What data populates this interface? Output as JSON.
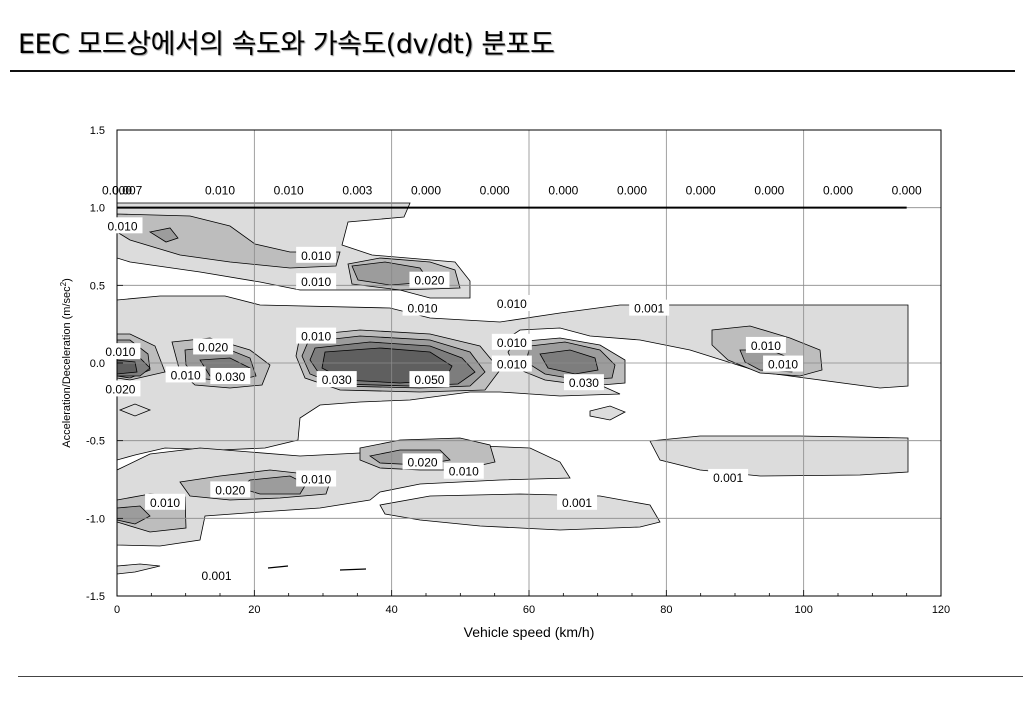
{
  "page": {
    "title": "EEC 모드상에서의 속도와  가속도(dv/dt) 분포도"
  },
  "chart_data": {
    "type": "contour",
    "xlabel": "Vehicle speed (km/h)",
    "ylabel": "Acceleration/Deceleration (m/sec",
    "ylabel_superscript": "2",
    "ylabel_close": ")",
    "xlim": [
      0,
      120
    ],
    "ylim": [
      -1.5,
      1.5
    ],
    "x_ticks": [
      0,
      20,
      40,
      60,
      80,
      100,
      120
    ],
    "y_ticks": [
      1.5,
      1.0,
      0.5,
      0.0,
      -0.5,
      -1.0,
      -1.5
    ],
    "x_tick_labels": [
      "0",
      "20",
      "40",
      "60",
      "80",
      "100",
      "120"
    ],
    "y_tick_labels": [
      "1.5",
      "1.0",
      "0.5",
      "0.0",
      "-0.5",
      "-1.0",
      "-1.5"
    ],
    "grid": true,
    "contour_levels": [
      0.001,
      0.01,
      0.02,
      0.03,
      0.05
    ],
    "level_colors": [
      "#dcdcdc",
      "#bdbdbd",
      "#9c9c9c",
      "#7d7d7d",
      "#5f5f5f"
    ],
    "top_row": {
      "y": 1.0,
      "values": [
        {
          "x": 0,
          "text": "0.000"
        },
        {
          "x": 1.5,
          "text": "0.007"
        },
        {
          "x": 15,
          "text": "0.010"
        },
        {
          "x": 25,
          "text": "0.010"
        },
        {
          "x": 35,
          "text": "0.003"
        },
        {
          "x": 45,
          "text": "0.000"
        },
        {
          "x": 55,
          "text": "0.000"
        },
        {
          "x": 65,
          "text": "0.000"
        },
        {
          "x": 75,
          "text": "0.000"
        },
        {
          "x": 85,
          "text": "0.000"
        },
        {
          "x": 95,
          "text": "0.000"
        },
        {
          "x": 105,
          "text": "0.000"
        },
        {
          "x": 115,
          "text": "0.000"
        }
      ]
    },
    "labels": [
      {
        "x": 0.8,
        "y": 0.88,
        "text": "0.010"
      },
      {
        "x": 29,
        "y": 0.69,
        "text": "0.010"
      },
      {
        "x": 45.5,
        "y": 0.53,
        "text": "0.020"
      },
      {
        "x": 29,
        "y": 0.52,
        "text": "0.010"
      },
      {
        "x": 44.5,
        "y": 0.35,
        "text": "0.010"
      },
      {
        "x": 57.5,
        "y": 0.38,
        "text": "0.010"
      },
      {
        "x": 77.5,
        "y": 0.35,
        "text": "0.001"
      },
      {
        "x": 29,
        "y": 0.17,
        "text": "0.010"
      },
      {
        "x": 57.5,
        "y": 0.13,
        "text": "0.010"
      },
      {
        "x": 94.5,
        "y": 0.11,
        "text": "0.010"
      },
      {
        "x": 0.5,
        "y": 0.07,
        "text": "0.010"
      },
      {
        "x": 14,
        "y": 0.1,
        "text": "0.020"
      },
      {
        "x": 97,
        "y": -0.01,
        "text": "0.010"
      },
      {
        "x": 57.5,
        "y": -0.01,
        "text": "0.010"
      },
      {
        "x": 10,
        "y": -0.08,
        "text": "0.010"
      },
      {
        "x": 16.5,
        "y": -0.09,
        "text": "0.030"
      },
      {
        "x": 32,
        "y": -0.11,
        "text": "0.030"
      },
      {
        "x": 45.5,
        "y": -0.11,
        "text": "0.050"
      },
      {
        "x": 68,
        "y": -0.13,
        "text": "0.030"
      },
      {
        "x": 0.5,
        "y": -0.17,
        "text": "0.020"
      },
      {
        "x": 44.5,
        "y": -0.64,
        "text": "0.020"
      },
      {
        "x": 50.5,
        "y": -0.7,
        "text": "0.010"
      },
      {
        "x": 29,
        "y": -0.75,
        "text": "0.010"
      },
      {
        "x": 89,
        "y": -0.74,
        "text": "0.001"
      },
      {
        "x": 16.5,
        "y": -0.82,
        "text": "0.020"
      },
      {
        "x": 7,
        "y": -0.9,
        "text": "0.010"
      },
      {
        "x": 67,
        "y": -0.9,
        "text": "0.001"
      },
      {
        "x": 14.5,
        "y": -1.37,
        "text": "0.001"
      }
    ]
  }
}
